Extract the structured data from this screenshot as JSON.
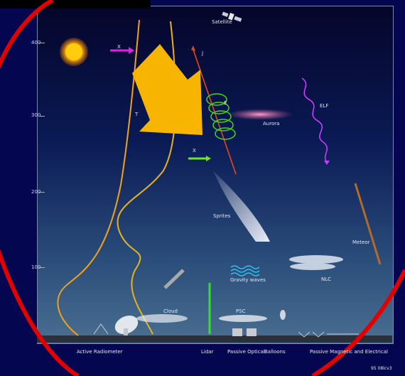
{
  "labels": {
    "satellite": "Satellite",
    "j1": "J",
    "t1": "T",
    "x1": "X",
    "e_field": "E",
    "lightning_arrow": "X",
    "aurora": "Aurora",
    "elf": "ELF",
    "sprites": "Sprites",
    "meteor": "Meteor",
    "gravity_waves": "Gravity waves",
    "nlc": "NLC",
    "psc": "PSC",
    "cloud": "Cloud"
  },
  "y_ticks": [
    "400",
    "300",
    "200",
    "100"
  ],
  "bottom_labels": [
    "Active Radiometer",
    "Lidar",
    "Passive Optical",
    "Balloons",
    "Passive Magnetic and Electrical"
  ],
  "figure_code": "95 08lcv3",
  "colors": {
    "highlight_arrow": "#f7b400",
    "annotation_ring": "#e30000",
    "temperature_curve": "#f2a21a",
    "elf_wave": "#c93bff",
    "spiral": "#46d51a"
  }
}
